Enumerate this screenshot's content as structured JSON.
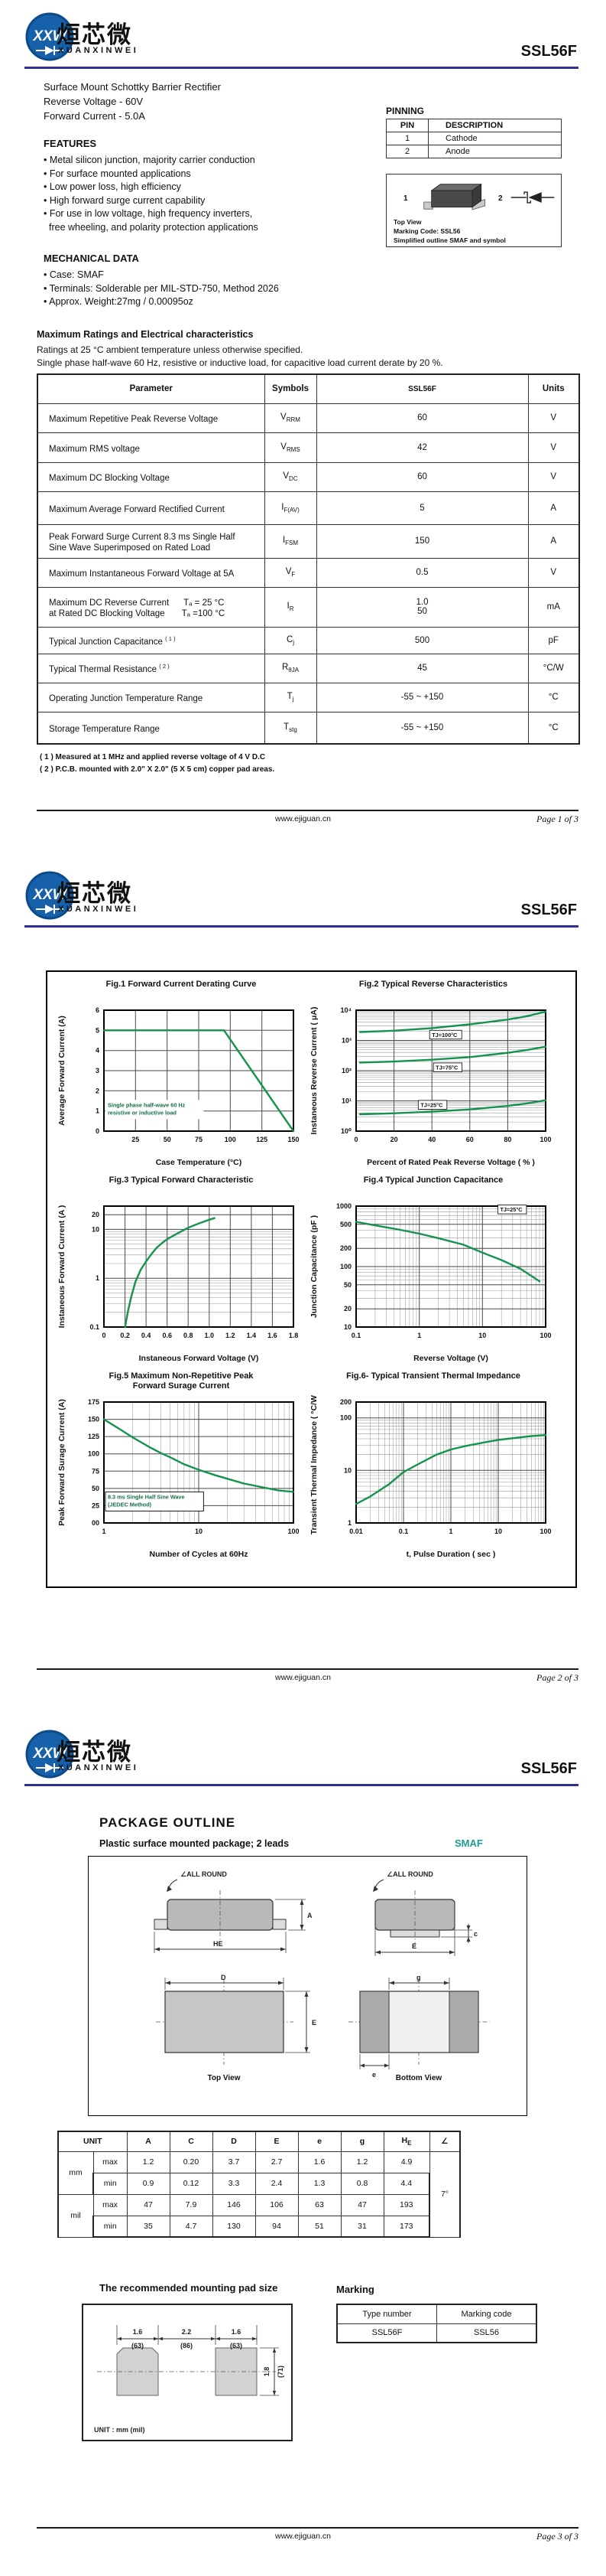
{
  "brand": {
    "logo_initials": "XXW",
    "logo_cn": "烜芯微",
    "logo_en": "XUANXINWEI",
    "part_number": "SSL56F"
  },
  "colors": {
    "curve": "#13934b",
    "header_rule": "#2e3192",
    "smaf_teal": "#1d9a94",
    "logo_blue": "#1661a9",
    "annotation_green": "#156f43"
  },
  "footer": {
    "website": "www.ejiguan.cn",
    "pages": [
      "Page  1  of  3",
      "Page  2  of  3",
      "Page  3  of  3"
    ]
  },
  "page1": {
    "description_lines": [
      "Surface Mount Schottky Barrier Rectifier",
      "Reverse Voltage - 60V",
      "Forward Current - 5.0A"
    ],
    "features_title": "FEATURES",
    "features": [
      "• Metal silicon junction, majority carrier conduction",
      "• For surface mounted applications",
      "• Low power loss, high efficiency",
      "• High forward surge current capability",
      "• For use in low voltage, high frequency inverters,",
      "free wheeling, and polarity protection applications"
    ],
    "mechanical_title": "MECHANICAL DATA",
    "mechanical": [
      "• Case: SMAF",
      "• Terminals: Solderable per MIL-STD-750, Method 2026",
      "• Approx. Weight:27mg /  0.00095oz"
    ],
    "pinning": {
      "title": "PINNING",
      "headers": [
        "PIN",
        "DESCRIPTION"
      ],
      "rows": [
        [
          "1",
          "Cathode"
        ],
        [
          "2",
          "Anode"
        ]
      ]
    },
    "outline_preview": {
      "pin1": "1",
      "pin2": "2",
      "captions": [
        "Top View",
        "Marking Code:  SSL56",
        "Simplified outline SMAF and symbol"
      ]
    },
    "ratings": {
      "title": "Maximum Ratings and Electrical characteristics",
      "subtitle_lines": [
        "Ratings at 25 °C ambient temperature unless otherwise specified.",
        "Single phase half-wave 60 Hz, resistive or inductive load, for capacitive load current derate by 20 %."
      ],
      "headers": [
        "Parameter",
        "Symbols",
        "SSL56F",
        "Units"
      ],
      "rows": [
        {
          "p1": "Maximum Repetitive Peak Reverse Voltage",
          "sup": "",
          "p2": "",
          "symM": "V",
          "symS": "RRM",
          "v1": "60",
          "v2": "",
          "u": "V"
        },
        {
          "p1": "Maximum RMS voltage",
          "sup": "",
          "p2": "",
          "symM": "V",
          "symS": "RMS",
          "v1": "42",
          "v2": "",
          "u": "V"
        },
        {
          "p1": "Maximum DC Blocking Voltage",
          "sup": "",
          "p2": "",
          "symM": "V",
          "symS": "DC",
          "v1": "60",
          "v2": "",
          "u": "V"
        },
        {
          "p1": "Maximum Average Forward Rectified Current",
          "sup": "",
          "p2": "",
          "symM": "I",
          "symS": "F(AV)",
          "v1": "5",
          "v2": "",
          "u": "A"
        },
        {
          "p1": "Peak Forward Surge Current 8.3 ms Single Half",
          "sup": "",
          "p2": "Sine Wave Superimposed on Rated Load",
          "symM": "I",
          "symS": "FSM",
          "v1": "150",
          "v2": "",
          "u": "A"
        },
        {
          "p1": "Maximum Instantaneous Forward Voltage at 5A",
          "sup": "",
          "p2": "",
          "symM": "V",
          "symS": "F",
          "v1": "0.5",
          "v2": "",
          "u": "V"
        },
        {
          "p1": "Maximum DC Reverse Current      Tₐ = 25 °C",
          "sup": "",
          "p2": "at Rated DC Blocking Voltage       Tₐ =100 °C",
          "symM": "I",
          "symS": "R",
          "v1": "1.0",
          "v2": "50",
          "u": "mA"
        },
        {
          "p1": "Typical Junction Capacitance ",
          "sup": "( 1 )",
          "p2": "",
          "symM": "C",
          "symS": "j",
          "v1": "500",
          "v2": "",
          "u": "pF"
        },
        {
          "p1": "Typical Thermal Resistance ",
          "sup": "( 2 )",
          "p2": "",
          "symM": "R",
          "symS": "θJA",
          "v1": "45",
          "v2": "",
          "u": "°C/W"
        },
        {
          "p1": "Operating Junction Temperature Range",
          "sup": "",
          "p2": "",
          "symM": "T",
          "symS": "j",
          "v1": "-55 ~ +150",
          "v2": "",
          "u": "°C"
        },
        {
          "p1": "Storage Temperature Range",
          "sup": "",
          "p2": "",
          "symM": "T",
          "symS": "stg",
          "v1": "-55 ~ +150",
          "v2": "",
          "u": "°C"
        }
      ],
      "notes": [
        "( 1 )  Measured at 1 MHz and applied reverse voltage of 4 V D.C",
        "( 2 )  P.C.B. mounted with 2.0\" X 2.0\" (5 X 5 cm) copper pad areas."
      ]
    }
  },
  "chart_data": [
    {
      "id": "fig1",
      "type": "line",
      "title_lines": [
        "Fig.1  Forward Current Derating Curve"
      ],
      "xscale": "linear",
      "yscale": "linear",
      "xlim": [
        0,
        150
      ],
      "ylim": [
        0,
        6
      ],
      "xticks": [
        [
          25,
          "25"
        ],
        [
          50,
          "50"
        ],
        [
          75,
          "75"
        ],
        [
          100,
          "100"
        ],
        [
          125,
          "125"
        ],
        [
          150,
          "150"
        ]
      ],
      "yticks": [
        [
          0,
          "0"
        ],
        [
          1,
          "1"
        ],
        [
          2,
          "2"
        ],
        [
          3,
          "3"
        ],
        [
          4,
          "4"
        ],
        [
          5,
          "5"
        ],
        [
          6,
          "6"
        ]
      ],
      "xlabel": "Case Temperature (°C)",
      "ylabel": "Average Forward Current (A)",
      "series": [
        {
          "name": "derating",
          "points": [
            [
              0,
              5
            ],
            [
              95,
              5
            ],
            [
              150,
              0
            ]
          ]
        }
      ],
      "annotations": [
        {
          "fx": 0.02,
          "fy": 0.8,
          "boxed": false,
          "lines": [
            "Single phase half-wave 60 Hz",
            "resistive or inductive load"
          ]
        }
      ]
    },
    {
      "id": "fig2",
      "type": "line",
      "title_lines": [
        "Fig.2  Typical Reverse Characteristics"
      ],
      "xscale": "linear",
      "yscale": "log",
      "xlim": [
        0,
        100
      ],
      "ylim": [
        1,
        10000
      ],
      "xticks": [
        [
          0,
          "0"
        ],
        [
          20,
          "20"
        ],
        [
          40,
          "40"
        ],
        [
          60,
          "60"
        ],
        [
          80,
          "80"
        ],
        [
          100,
          "100"
        ]
      ],
      "yticks": [
        [
          1,
          "10⁰"
        ],
        [
          10,
          "10¹"
        ],
        [
          100,
          "10²"
        ],
        [
          1000,
          "10³"
        ],
        [
          10000,
          "10⁴"
        ]
      ],
      "xlabel": "Percent of Rated Peak Reverse Voltage ( % )",
      "ylabel": "Instaneous Reverse Current ( μA)",
      "series": [
        {
          "name": "TJ=100°C",
          "points": [
            [
              2,
              1900
            ],
            [
              20,
              2100
            ],
            [
              40,
              2550
            ],
            [
              60,
              3400
            ],
            [
              80,
              4900
            ],
            [
              90,
              6300
            ],
            [
              100,
              9000
            ]
          ]
        },
        {
          "name": "TJ=75°C",
          "points": [
            [
              2,
              185
            ],
            [
              20,
              200
            ],
            [
              40,
              230
            ],
            [
              60,
              280
            ],
            [
              80,
              390
            ],
            [
              90,
              480
            ],
            [
              100,
              620
            ]
          ]
        },
        {
          "name": "TJ=25°C",
          "points": [
            [
              2,
              3.6
            ],
            [
              20,
              3.9
            ],
            [
              40,
              4.4
            ],
            [
              60,
              5.2
            ],
            [
              80,
              6.8
            ],
            [
              90,
              8.2
            ],
            [
              100,
              10.5
            ]
          ]
        }
      ],
      "labels": [
        {
          "fx": 0.4,
          "fy": 0.22,
          "text": "TJ=100°C",
          "boxed": true
        },
        {
          "fx": 0.42,
          "fy": 0.49,
          "text": "TJ=75°C",
          "boxed": true
        },
        {
          "fx": 0.34,
          "fy": 0.8,
          "text": "TJ=25°C",
          "boxed": true
        }
      ]
    },
    {
      "id": "fig3",
      "type": "line",
      "title_lines": [
        "Fig.3  Typical Forward Characteristic"
      ],
      "xscale": "linear",
      "yscale": "log",
      "xlim": [
        0,
        1.8
      ],
      "ylim": [
        0.1,
        30
      ],
      "xticks": [
        [
          0,
          "0"
        ],
        [
          0.2,
          "0.2"
        ],
        [
          0.4,
          "0.4"
        ],
        [
          0.6,
          "0.6"
        ],
        [
          0.8,
          "0.8"
        ],
        [
          1.0,
          "1.0"
        ],
        [
          1.2,
          "1.2"
        ],
        [
          1.4,
          "1.4"
        ],
        [
          1.6,
          "1.6"
        ],
        [
          1.8,
          "1.8"
        ]
      ],
      "yticks": [
        [
          0.1,
          "0.1"
        ],
        [
          1,
          "1"
        ],
        [
          10,
          "10"
        ],
        [
          20,
          "20"
        ]
      ],
      "xlabel": "Instaneous Forward Voltage (V)",
      "ylabel": "Instaneous Forward Current  (A )",
      "series": [
        {
          "name": "VF",
          "points": [
            [
              0.2,
              0.1
            ],
            [
              0.23,
              0.22
            ],
            [
              0.26,
              0.42
            ],
            [
              0.3,
              0.85
            ],
            [
              0.35,
              1.5
            ],
            [
              0.4,
              2.2
            ],
            [
              0.45,
              3.1
            ],
            [
              0.5,
              4.2
            ],
            [
              0.55,
              5.2
            ],
            [
              0.6,
              6.3
            ],
            [
              0.7,
              8.3
            ],
            [
              0.8,
              10.8
            ],
            [
              0.9,
              13.2
            ],
            [
              1.0,
              15.8
            ],
            [
              1.05,
              17
            ]
          ]
        }
      ]
    },
    {
      "id": "fig4",
      "type": "line",
      "title_lines": [
        "Fig.4  Typical Junction Capacitance"
      ],
      "xscale": "log",
      "yscale": "log",
      "xlim": [
        0.1,
        100
      ],
      "ylim": [
        10,
        1000
      ],
      "xticks": [
        [
          0.1,
          "0.1"
        ],
        [
          1,
          "1"
        ],
        [
          10,
          "10"
        ],
        [
          100,
          "100"
        ]
      ],
      "yticks": [
        [
          10,
          "10"
        ],
        [
          20,
          "20"
        ],
        [
          50,
          "50"
        ],
        [
          100,
          "100"
        ],
        [
          200,
          "200"
        ],
        [
          500,
          "500"
        ],
        [
          1000,
          "1000"
        ]
      ],
      "xlabel": "Reverse  Voltage (V)",
      "ylabel": "Junction Capacitance (pF )",
      "series": [
        {
          "name": "Cj",
          "points": [
            [
              0.1,
              550
            ],
            [
              0.2,
              480
            ],
            [
              0.5,
              405
            ],
            [
              1,
              350
            ],
            [
              2,
              295
            ],
            [
              5,
              230
            ],
            [
              10,
              170
            ],
            [
              20,
              128
            ],
            [
              40,
              92
            ],
            [
              80,
              57
            ]
          ]
        }
      ],
      "labels": [
        {
          "fx": 0.76,
          "fy": 0.045,
          "text": "TJ=25°C",
          "boxed": true
        }
      ]
    },
    {
      "id": "fig5",
      "type": "line",
      "title_lines": [
        "Fig.5  Maximum Non-Repetitive Peak",
        "Forward Surage Current"
      ],
      "xscale": "log",
      "yscale": "linear",
      "xlim": [
        1,
        100
      ],
      "ylim": [
        0,
        175
      ],
      "xticks": [
        [
          1,
          "1"
        ],
        [
          10,
          "10"
        ],
        [
          100,
          "100"
        ]
      ],
      "yticks": [
        [
          0,
          "00"
        ],
        [
          25,
          "25"
        ],
        [
          50,
          "50"
        ],
        [
          75,
          "75"
        ],
        [
          100,
          "100"
        ],
        [
          125,
          "125"
        ],
        [
          150,
          "150"
        ],
        [
          175,
          "175"
        ]
      ],
      "xlabel": "Number of Cycles at 60Hz",
      "ylabel": "Peak Forward Surage Current (A)",
      "series": [
        {
          "name": "IFSM",
          "points": [
            [
              1,
              150
            ],
            [
              1.5,
              135
            ],
            [
              2,
              124
            ],
            [
              3,
              110
            ],
            [
              4,
              101
            ],
            [
              5,
              95
            ],
            [
              7,
              85
            ],
            [
              10,
              77
            ],
            [
              15,
              69
            ],
            [
              20,
              64
            ],
            [
              30,
              57
            ],
            [
              50,
              51
            ],
            [
              70,
              47
            ],
            [
              100,
              45
            ]
          ]
        }
      ],
      "annotations": [
        {
          "fx": 0.02,
          "fy": 0.8,
          "boxed": true,
          "lines": [
            "8.3 ms Single Half Sine Wave",
            "(JEDEC Method)"
          ]
        }
      ]
    },
    {
      "id": "fig6",
      "type": "line",
      "title_lines": [
        "Fig.6- Typical Transient Thermal Impedance"
      ],
      "xscale": "log",
      "yscale": "log",
      "xlim": [
        0.01,
        100
      ],
      "ylim": [
        1,
        200
      ],
      "xticks": [
        [
          0.01,
          "0.01"
        ],
        [
          0.1,
          "0.1"
        ],
        [
          1,
          "1"
        ],
        [
          10,
          "10"
        ],
        [
          100,
          "100"
        ]
      ],
      "yticks": [
        [
          1,
          "1"
        ],
        [
          10,
          "10"
        ],
        [
          100,
          "100"
        ],
        [
          200,
          "200"
        ]
      ],
      "xlabel": "t, Pulse Duration ( sec )",
      "ylabel": "Transient Thermal Impedance ( °C/W )",
      "series": [
        {
          "name": "Zth",
          "points": [
            [
              0.01,
              2.3
            ],
            [
              0.02,
              3.2
            ],
            [
              0.05,
              5.5
            ],
            [
              0.1,
              9.3
            ],
            [
              0.2,
              13
            ],
            [
              0.5,
              20
            ],
            [
              1,
              25
            ],
            [
              2,
              29
            ],
            [
              5,
              34
            ],
            [
              10,
              38
            ],
            [
              20,
              41
            ],
            [
              50,
              45
            ],
            [
              100,
              47
            ]
          ]
        }
      ]
    }
  ],
  "page3": {
    "title": "PACKAGE  OUTLINE",
    "subtitle": "Plastic surface mounted package; 2 leads",
    "package_name": "SMAF",
    "outline": {
      "allround": "∠ALL ROUND",
      "top_view": "Top View",
      "bottom_view": "Bottom View",
      "dims": {
        "a": "A",
        "c": "c",
        "d": "D",
        "e": "E",
        "e_small": "e",
        "g": "g",
        "he": "HE"
      }
    },
    "dim_table": {
      "unit_label": "UNIT",
      "letters": [
        "A",
        "C",
        "D",
        "E",
        "e",
        "g"
      ],
      "he_main": "H",
      "he_sub": "E",
      "angle_header": "∠",
      "angle_value": "7°",
      "rows": [
        {
          "unit": "mm",
          "minmax": "max",
          "vals": [
            "1.2",
            "0.20",
            "3.7",
            "2.7",
            "1.6",
            "1.2",
            "4.9"
          ]
        },
        {
          "unit": "",
          "minmax": "min",
          "vals": [
            "0.9",
            "0.12",
            "3.3",
            "2.4",
            "1.3",
            "0.8",
            "4.4"
          ]
        },
        {
          "unit": "mil",
          "minmax": "max",
          "vals": [
            "47",
            "7.9",
            "146",
            "106",
            "63",
            "47",
            "193"
          ]
        },
        {
          "unit": "",
          "minmax": "min",
          "vals": [
            "35",
            "4.7",
            "130",
            "94",
            "51",
            "31",
            "173"
          ]
        }
      ]
    },
    "pad": {
      "title": "The recommended mounting pad size",
      "dims_top": [
        {
          "v": "1.6",
          "mil": "(63)"
        },
        {
          "v": "2.2",
          "mil": "(86)"
        },
        {
          "v": "1.6",
          "mil": "(63)"
        }
      ],
      "dim_right": {
        "v": "1.8",
        "mil": "(71)"
      },
      "unit_note": "UNIT : mm (mil)"
    },
    "marking": {
      "title": "Marking",
      "headers": [
        "Type number",
        "Marking code"
      ],
      "row": [
        "SSL56F",
        "SSL56"
      ]
    }
  }
}
